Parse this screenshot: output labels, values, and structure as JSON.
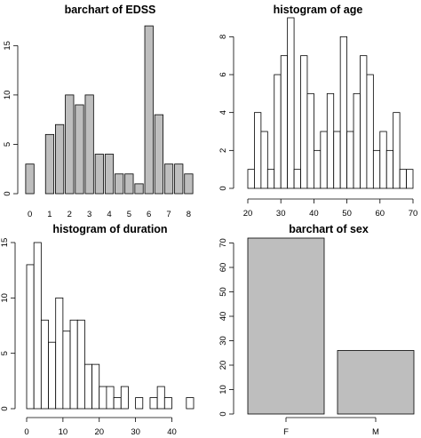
{
  "chart_data": [
    {
      "type": "bar",
      "title": "barchart of EDSS",
      "xlabel": "",
      "ylabel": "",
      "categories": [
        "0",
        "0.5",
        "1",
        "1.5",
        "2",
        "2.5",
        "3",
        "3.5",
        "4",
        "4.5",
        "5",
        "5.5",
        "6",
        "6.5",
        "7",
        "7.5",
        "8"
      ],
      "values": [
        3,
        0,
        6,
        7,
        10,
        9,
        10,
        4,
        4,
        2,
        2,
        1,
        17,
        8,
        3,
        3,
        2
      ],
      "x_tick_labels": [
        "0",
        "1",
        "2",
        "3",
        "4",
        "5",
        "6",
        "7",
        "8"
      ],
      "y_ticks": [
        0,
        5,
        10,
        15
      ],
      "ylim": [
        0,
        18
      ],
      "fill": "#bebebe"
    },
    {
      "type": "bar",
      "title": "histogram of age",
      "xlabel": "",
      "ylabel": "",
      "bin_width": 2,
      "x": [
        20,
        22,
        24,
        26,
        28,
        30,
        32,
        34,
        36,
        38,
        40,
        42,
        44,
        46,
        48,
        50,
        52,
        54,
        56,
        58,
        60,
        62,
        64,
        66,
        68
      ],
      "values": [
        1,
        4,
        3,
        1,
        6,
        7,
        9,
        1,
        7,
        5,
        2,
        3,
        5,
        3,
        8,
        3,
        5,
        7,
        6,
        2,
        3,
        2,
        4,
        1,
        1
      ],
      "x_ticks": [
        20,
        30,
        40,
        50,
        60,
        70
      ],
      "y_ticks": [
        0,
        2,
        4,
        6,
        8
      ],
      "xlim": [
        20,
        70
      ],
      "ylim": [
        0,
        9
      ],
      "fill": "#ffffff"
    },
    {
      "type": "bar",
      "title": "histogram of duration",
      "xlabel": "",
      "ylabel": "",
      "bin_width": 2,
      "x": [
        0,
        2,
        4,
        6,
        8,
        10,
        12,
        14,
        16,
        18,
        20,
        22,
        24,
        26,
        28,
        30,
        32,
        34,
        36,
        38,
        40,
        42,
        44
      ],
      "values": [
        13,
        15,
        8,
        6,
        10,
        7,
        8,
        8,
        4,
        4,
        2,
        2,
        1,
        2,
        0,
        1,
        0,
        1,
        2,
        1,
        0,
        0,
        1
      ],
      "x_ticks": [
        0,
        10,
        20,
        30,
        40
      ],
      "y_ticks": [
        0,
        5,
        10,
        15
      ],
      "xlim": [
        0,
        46
      ],
      "ylim": [
        0,
        15
      ],
      "fill": "#ffffff"
    },
    {
      "type": "bar",
      "title": "barchart of sex",
      "xlabel": "",
      "ylabel": "",
      "categories": [
        "F",
        "M"
      ],
      "values": [
        72,
        26
      ],
      "y_ticks": [
        0,
        10,
        20,
        30,
        40,
        50,
        60,
        70
      ],
      "ylim": [
        0,
        72
      ],
      "fill": "#bebebe"
    }
  ]
}
